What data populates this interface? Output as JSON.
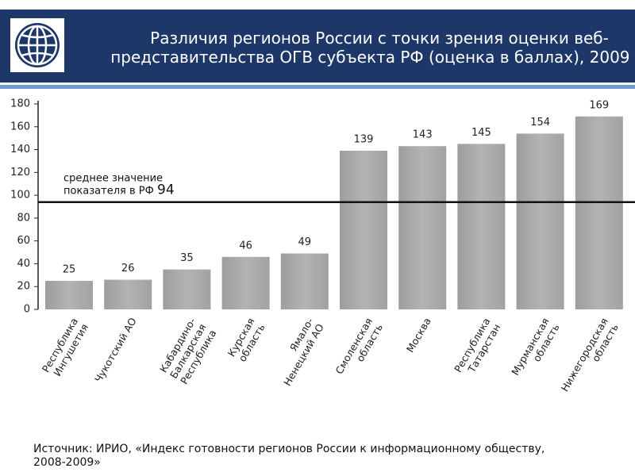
{
  "chart_data": {
    "type": "bar",
    "title": "Различия регионов России с точки зрения оценки веб-\nпредставительства ОГВ субъекта РФ (оценка в баллах), 2009 г.",
    "categories": [
      "Республика\nИнгушетия",
      "Чукотский АО",
      "Кабардино-\nБалкарская\nРеспублика",
      "Курская\nобласть",
      "Ямало-\nНенецкий АО",
      "Смоленская\nобласть",
      "Москва",
      "Республика\nТатарстан",
      "Мурманская\nобласть",
      "Нижегородская\nобласть"
    ],
    "values": [
      25,
      26,
      35,
      46,
      49,
      139,
      143,
      145,
      154,
      169
    ],
    "color": "#b3b3b5",
    "ylim": [
      0,
      180
    ],
    "yticks": [
      0,
      20,
      40,
      60,
      80,
      100,
      120,
      140,
      160,
      180
    ],
    "average": {
      "label": "среднее значение\nпоказателя в РФ",
      "value": 94
    },
    "source": "Источник: ИРИО, «Индекс готовности регионов России к информационному обществу,\n2008-2009»"
  }
}
